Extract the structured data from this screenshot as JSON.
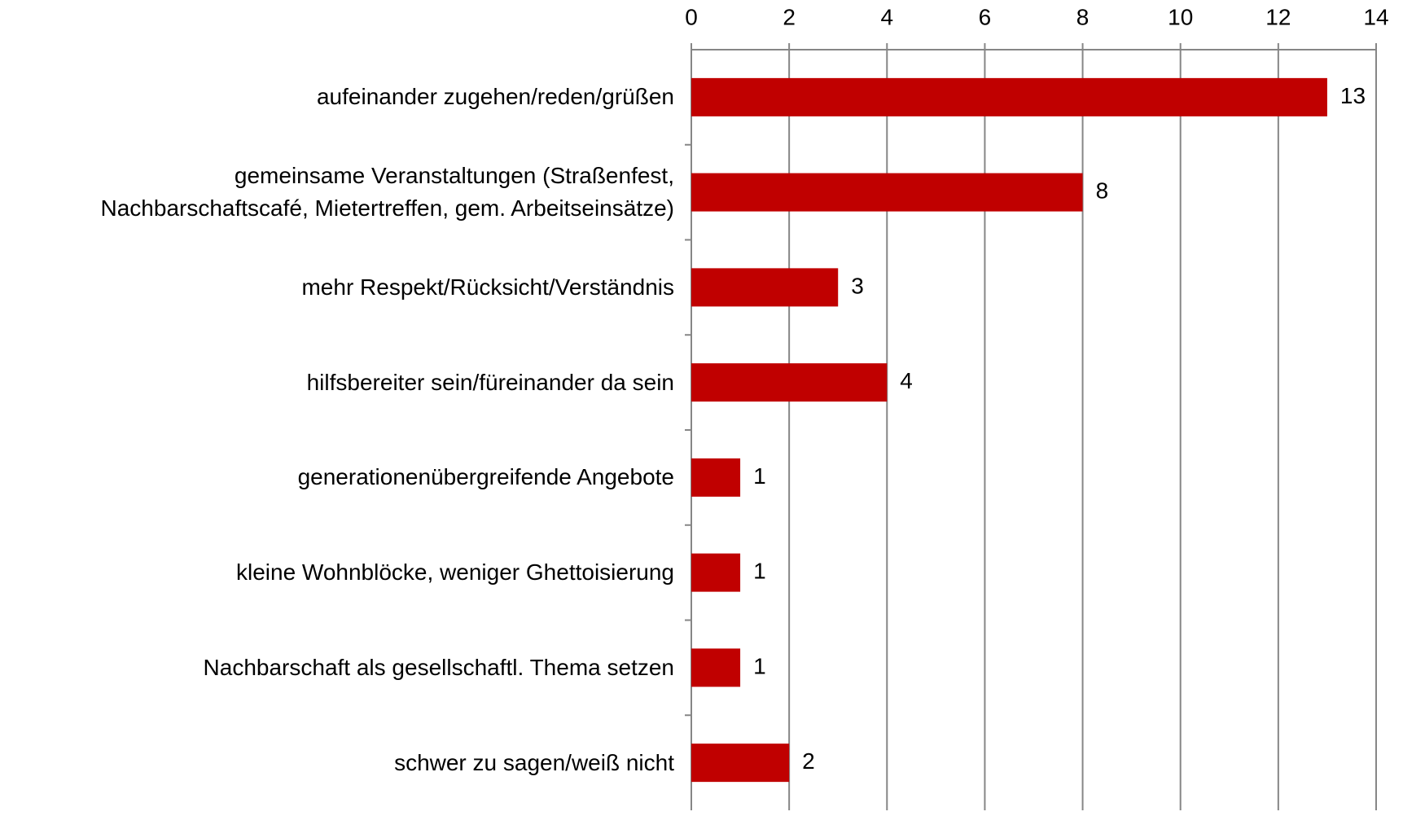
{
  "chart_data": {
    "type": "barh",
    "categories": [
      "aufeinander zugehen/reden/grüßen",
      "gemeinsame Veranstaltungen (Straßenfest,\nNachbarschaftscafé, Mietertreffen, gem. Arbeitseinsätze)",
      "mehr Respekt/Rücksicht/Verständnis",
      "hilfsbereiter sein/füreinander da sein",
      "generationenübergreifende Angebote",
      "kleine Wohnblöcke, weniger Ghettoisierung",
      "Nachbarschaft als gesellschaftl. Thema setzen",
      "schwer zu sagen/weiß nicht"
    ],
    "values": [
      13,
      8,
      3,
      4,
      1,
      1,
      1,
      2
    ],
    "color": "#c00000",
    "xlim": [
      0,
      14
    ],
    "xticks": [
      0,
      2,
      4,
      6,
      8,
      10,
      12,
      14
    ],
    "grid": true
  }
}
